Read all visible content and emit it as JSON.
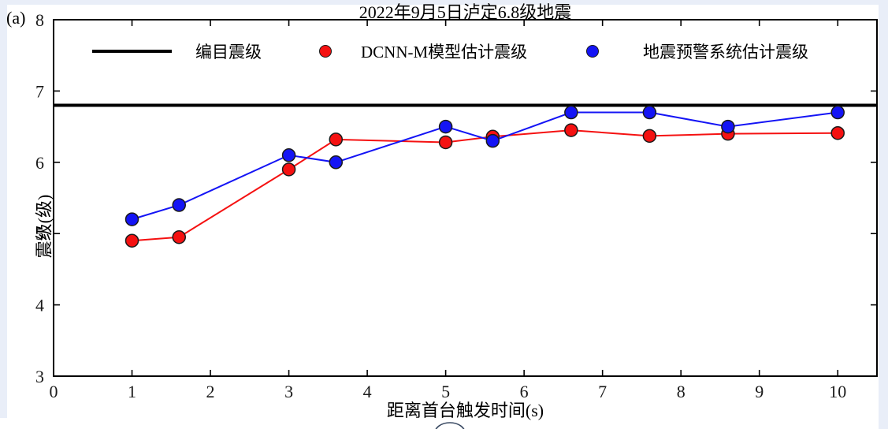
{
  "figure": {
    "panel_label": "(a)",
    "title": "2022年9月5日泸定6.8级地震",
    "xlabel": "距离首台触发时间(s)",
    "ylabel": "震级(级)"
  },
  "legend": {
    "items": [
      {
        "label": "编目震级",
        "marker": "line",
        "color": "#000000"
      },
      {
        "label": "DCNN-M模型估计震级",
        "marker": "dot",
        "color": "#f51111"
      },
      {
        "label": "地震预警系统估计震级",
        "marker": "dot",
        "color": "#1414f5"
      }
    ],
    "position": "top-inside",
    "box": false
  },
  "chart_data": {
    "type": "line",
    "title": "2022年9月5日泸定6.8级地震",
    "xlabel": "距离首台触发时间(s)",
    "ylabel": "震级(级)",
    "x": [
      1,
      1.6,
      3,
      3.6,
      5,
      5.6,
      6.6,
      7.6,
      8.6,
      10
    ],
    "series": [
      {
        "name": "编目震级",
        "type": "hline",
        "value": 6.8,
        "color": "#000000",
        "linewidth": 4
      },
      {
        "name": "DCNN-M模型估计震级",
        "type": "line-marker",
        "values": [
          4.9,
          4.95,
          5.9,
          6.32,
          6.28,
          6.36,
          6.45,
          6.37,
          6.4,
          6.41
        ],
        "color": "#f51111"
      },
      {
        "name": "地震预警系统估计震级",
        "type": "line-marker",
        "values": [
          5.2,
          5.4,
          6.1,
          6.0,
          6.5,
          6.3,
          6.7,
          6.7,
          6.5,
          6.7
        ],
        "color": "#1414f5"
      }
    ],
    "xlim": [
      0,
      10.5
    ],
    "ylim": [
      3,
      8
    ],
    "xticks": [
      0,
      1,
      2,
      3,
      4,
      5,
      6,
      7,
      8,
      9,
      10
    ],
    "yticks": [
      3,
      4,
      5,
      6,
      7,
      8
    ],
    "grid": false,
    "axis_color": "#000000",
    "marker_radius": 8,
    "marker_edge_color": "#1a1a1a",
    "tick_label_color": "#1a1a1a"
  },
  "decoration": {
    "bottom_partial_circle_color": "#3a4a63"
  }
}
